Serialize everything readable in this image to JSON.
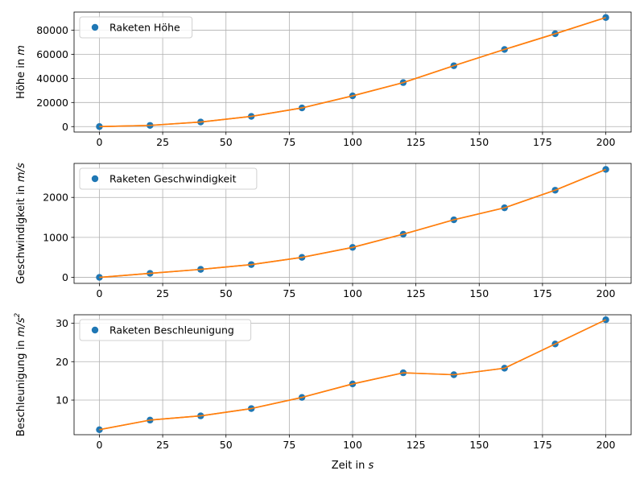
{
  "figure": {
    "xlabel": "Zeit in s"
  },
  "chart_data": [
    {
      "type": "scatter",
      "series": [
        {
          "name": "Raketen Höhe",
          "x": [
            0,
            20,
            40,
            60,
            80,
            100,
            120,
            140,
            160,
            180,
            200
          ],
          "y": [
            0,
            1000,
            3800,
            8500,
            15500,
            25500,
            36500,
            50500,
            64000,
            77000,
            90500
          ],
          "color": "#1f77b4",
          "marker": "circle"
        },
        {
          "x": [
            0,
            20,
            40,
            60,
            80,
            100,
            120,
            140,
            160,
            180,
            200
          ],
          "y": [
            0,
            1000,
            3800,
            8500,
            15500,
            25500,
            36500,
            50500,
            64000,
            77000,
            90500
          ],
          "color": "#ff7f0e",
          "style": "line"
        }
      ],
      "ylabel_text": "Höhe in ",
      "ylabel_unit": "m",
      "xlim": [
        -10,
        210
      ],
      "ylim": [
        -4500,
        95000
      ],
      "xticks": [
        0,
        25,
        50,
        75,
        100,
        125,
        150,
        175,
        200
      ],
      "yticks": [
        0,
        20000,
        40000,
        60000,
        80000
      ],
      "grid": true,
      "legend": "top-left"
    },
    {
      "type": "scatter",
      "series": [
        {
          "name": "Raketen Geschwindigkeit",
          "x": [
            0,
            20,
            40,
            60,
            80,
            100,
            120,
            140,
            160,
            180,
            200
          ],
          "y": [
            0,
            100,
            200,
            320,
            500,
            750,
            1080,
            1440,
            1740,
            2180,
            2700
          ],
          "color": "#1f77b4",
          "marker": "circle"
        },
        {
          "x": [
            0,
            20,
            40,
            60,
            80,
            100,
            120,
            140,
            160,
            180,
            200
          ],
          "y": [
            0,
            100,
            200,
            320,
            500,
            750,
            1080,
            1440,
            1740,
            2180,
            2700
          ],
          "color": "#ff7f0e",
          "style": "line"
        }
      ],
      "ylabel_text": "Geschwindigkeit in ",
      "ylabel_unit": "m/s",
      "xlim": [
        -10,
        210
      ],
      "ylim": [
        -150,
        2850
      ],
      "xticks": [
        0,
        25,
        50,
        75,
        100,
        125,
        150,
        175,
        200
      ],
      "yticks": [
        0,
        1000,
        2000
      ],
      "grid": true,
      "legend": "top-left"
    },
    {
      "type": "scatter",
      "series": [
        {
          "name": "Raketen Beschleunigung",
          "x": [
            0,
            20,
            40,
            60,
            80,
            100,
            120,
            140,
            160,
            180,
            200
          ],
          "y": [
            2.3,
            4.8,
            5.9,
            7.8,
            10.7,
            14.2,
            17.1,
            16.6,
            18.3,
            24.6,
            30.9
          ],
          "color": "#1f77b4",
          "marker": "circle"
        },
        {
          "x": [
            0,
            20,
            40,
            60,
            80,
            100,
            120,
            140,
            160,
            180,
            200
          ],
          "y": [
            2.3,
            4.8,
            5.9,
            7.8,
            10.7,
            14.2,
            17.1,
            16.6,
            18.3,
            24.6,
            30.9
          ],
          "color": "#ff7f0e",
          "style": "line"
        }
      ],
      "ylabel_text": "Beschleunigung in ",
      "ylabel_unit": "m/s",
      "ylabel_sup": "2",
      "xlim": [
        -10,
        210
      ],
      "ylim": [
        1.0,
        32.2
      ],
      "xticks": [
        0,
        25,
        50,
        75,
        100,
        125,
        150,
        175,
        200
      ],
      "yticks": [
        10,
        20,
        30
      ],
      "grid": true,
      "legend": "top-left"
    }
  ]
}
